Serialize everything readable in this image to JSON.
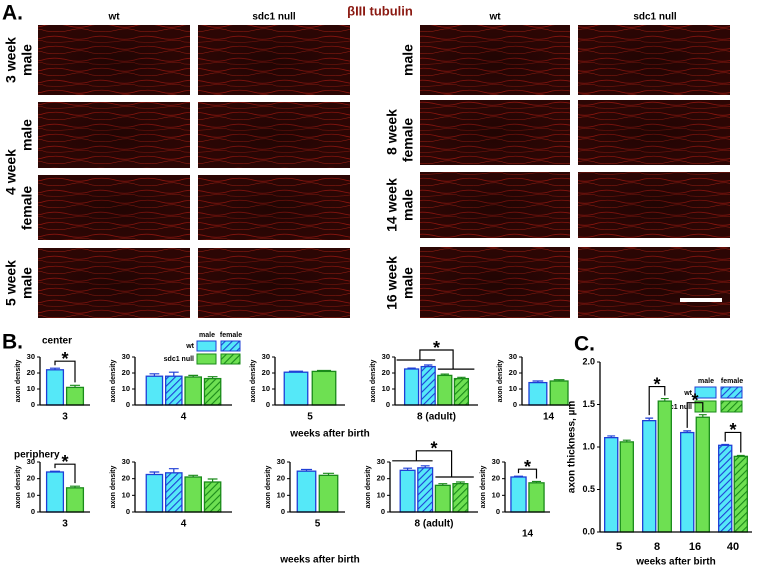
{
  "panel_a": {
    "label": "A.",
    "stain": "βIII tubulin",
    "left_columns": [
      "wt",
      "sdc1 null"
    ],
    "right_columns": [
      "wt",
      "sdc1 null"
    ],
    "left_rows": [
      [
        "3 week",
        "male"
      ],
      [
        "male"
      ],
      [
        "4 week"
      ],
      [
        "female"
      ],
      [
        "5 week",
        "male"
      ]
    ],
    "right_rows": [
      [
        "male"
      ],
      [
        "8 week"
      ],
      [
        "female"
      ],
      [
        "14 week",
        "male"
      ],
      [
        "16 week",
        "male"
      ]
    ]
  },
  "panel_b": {
    "label": "B.",
    "center": "center",
    "periphery": "periphery",
    "xlabels": [
      "weeks after birth",
      "weeks after birth"
    ],
    "legend": {
      "columns": [
        "male",
        "female"
      ],
      "rows": [
        "wt",
        "sdc1 null"
      ]
    }
  },
  "panel_c": {
    "label": "C.",
    "legend": {
      "columns": [
        "male",
        "female"
      ],
      "rows": [
        "wt",
        "sdc1 null"
      ]
    }
  },
  "chart_data": [
    {
      "type": "bar",
      "ylabel": "axon density",
      "categories": [
        "3"
      ],
      "values": [
        [
          22,
          11
        ]
      ],
      "errors": [
        [
          1,
          1.3
        ]
      ],
      "colors": [
        [
          "#55e8f8",
          "#6ee052"
        ]
      ],
      "edgecolors": [
        [
          "#1f3fd6",
          "#1a8a1a"
        ]
      ],
      "hatched": [
        [
          false,
          false
        ]
      ],
      "ylim": [
        0,
        30
      ],
      "yticks": [
        0,
        10,
        20,
        30
      ],
      "annotations": [
        "*"
      ]
    },
    {
      "type": "bar",
      "ylabel": "axon density",
      "categories": [
        "4"
      ],
      "values": [
        [
          18,
          18,
          17.5,
          16.5
        ]
      ],
      "errors": [
        [
          1.5,
          2.5,
          1,
          1.2
        ]
      ],
      "colors": [
        [
          "#55e8f8",
          "#55e8f8",
          "#6ee052",
          "#6ee052"
        ]
      ],
      "edgecolors": [
        [
          "#1f3fd6",
          "#1f3fd6",
          "#1a8a1a",
          "#1a8a1a"
        ]
      ],
      "hatched": [
        [
          false,
          true,
          false,
          true
        ]
      ],
      "ylim": [
        0,
        30
      ],
      "yticks": [
        0,
        10,
        20,
        30
      ]
    },
    {
      "type": "bar",
      "ylabel": "axon density",
      "categories": [
        "5"
      ],
      "values": [
        [
          20.5,
          21
        ]
      ],
      "errors": [
        [
          0.6,
          0.6
        ]
      ],
      "colors": [
        [
          "#55e8f8",
          "#6ee052"
        ]
      ],
      "edgecolors": [
        [
          "#1f3fd6",
          "#1a8a1a"
        ]
      ],
      "hatched": [
        [
          false,
          false
        ]
      ],
      "ylim": [
        0,
        30
      ],
      "yticks": [
        0,
        10,
        20,
        30
      ]
    },
    {
      "type": "bar",
      "ylabel": "axon density",
      "categories": [
        "8 (adult)"
      ],
      "values": [
        [
          22.5,
          24,
          18.5,
          16.5
        ]
      ],
      "errors": [
        [
          0.6,
          1,
          0.8,
          0.8
        ]
      ],
      "colors": [
        [
          "#55e8f8",
          "#55e8f8",
          "#6ee052",
          "#6ee052"
        ]
      ],
      "edgecolors": [
        [
          "#1f3fd6",
          "#1f3fd6",
          "#1a8a1a",
          "#1a8a1a"
        ]
      ],
      "hatched": [
        [
          false,
          true,
          false,
          true
        ]
      ],
      "ylim": [
        0,
        30
      ],
      "yticks": [
        0,
        10,
        20,
        30
      ],
      "annotations": [
        "*"
      ]
    },
    {
      "type": "bar",
      "ylabel": "axon density",
      "categories": [
        "14"
      ],
      "values": [
        [
          14,
          15
        ]
      ],
      "errors": [
        [
          1,
          0.8
        ]
      ],
      "colors": [
        [
          "#55e8f8",
          "#6ee052"
        ]
      ],
      "edgecolors": [
        [
          "#1f3fd6",
          "#1a8a1a"
        ]
      ],
      "hatched": [
        [
          false,
          false
        ]
      ],
      "ylim": [
        0,
        30
      ],
      "yticks": [
        0,
        10,
        20,
        30
      ]
    },
    {
      "type": "bar",
      "ylabel": "axon density",
      "categories": [
        "3"
      ],
      "values": [
        [
          24,
          14.5
        ]
      ],
      "errors": [
        [
          0.5,
          1
        ]
      ],
      "colors": [
        [
          "#55e8f8",
          "#6ee052"
        ]
      ],
      "edgecolors": [
        [
          "#1f3fd6",
          "#1a8a1a"
        ]
      ],
      "hatched": [
        [
          false,
          false
        ]
      ],
      "ylim": [
        0,
        30
      ],
      "yticks": [
        0,
        10,
        20,
        30
      ],
      "annotations": [
        "*"
      ]
    },
    {
      "type": "bar",
      "ylabel": "axon density",
      "categories": [
        "4"
      ],
      "values": [
        [
          22.5,
          23.5,
          21,
          18
        ]
      ],
      "errors": [
        [
          1.5,
          2.5,
          1,
          1.8
        ]
      ],
      "colors": [
        [
          "#55e8f8",
          "#55e8f8",
          "#6ee052",
          "#6ee052"
        ]
      ],
      "edgecolors": [
        [
          "#1f3fd6",
          "#1f3fd6",
          "#1a8a1a",
          "#1a8a1a"
        ]
      ],
      "hatched": [
        [
          false,
          true,
          false,
          true
        ]
      ],
      "ylim": [
        0,
        30
      ],
      "yticks": [
        0,
        10,
        20,
        30
      ]
    },
    {
      "type": "bar",
      "ylabel": "axon density",
      "categories": [
        "5"
      ],
      "values": [
        [
          24.5,
          22
        ]
      ],
      "errors": [
        [
          1,
          1.2
        ]
      ],
      "colors": [
        [
          "#55e8f8",
          "#6ee052"
        ]
      ],
      "edgecolors": [
        [
          "#1f3fd6",
          "#1a8a1a"
        ]
      ],
      "hatched": [
        [
          false,
          false
        ]
      ],
      "ylim": [
        0,
        30
      ],
      "yticks": [
        0,
        10,
        20,
        30
      ]
    },
    {
      "type": "bar",
      "ylabel": "axon density",
      "categories": [
        "8 (adult)"
      ],
      "values": [
        [
          25,
          26.5,
          16,
          17
        ]
      ],
      "errors": [
        [
          1.3,
          1.2,
          1,
          1
        ]
      ],
      "colors": [
        [
          "#55e8f8",
          "#55e8f8",
          "#6ee052",
          "#6ee052"
        ]
      ],
      "edgecolors": [
        [
          "#1f3fd6",
          "#1f3fd6",
          "#1a8a1a",
          "#1a8a1a"
        ]
      ],
      "hatched": [
        [
          false,
          true,
          false,
          true
        ]
      ],
      "ylim": [
        0,
        30
      ],
      "yticks": [
        0,
        10,
        20,
        30
      ],
      "annotations": [
        "*"
      ]
    },
    {
      "type": "bar",
      "ylabel": "axon density",
      "categories": [
        "14"
      ],
      "values": [
        [
          21,
          17.5
        ]
      ],
      "errors": [
        [
          0.5,
          0.8
        ]
      ],
      "colors": [
        [
          "#55e8f8",
          "#6ee052"
        ]
      ],
      "edgecolors": [
        [
          "#1f3fd6",
          "#1a8a1a"
        ]
      ],
      "hatched": [
        [
          false,
          false
        ]
      ],
      "ylim": [
        0,
        30
      ],
      "yticks": [
        0,
        10,
        20,
        30
      ],
      "annotations": [
        "*"
      ]
    },
    {
      "type": "bar",
      "ylabel": "axon thickness, µm",
      "xlabel": "weeks after birth",
      "categories": [
        "5",
        "8",
        "16",
        "40"
      ],
      "values": [
        [
          1.11,
          1.06
        ],
        [
          1.31,
          1.54
        ],
        [
          1.17,
          1.35
        ],
        [
          1.02,
          0.89
        ]
      ],
      "errors": [
        [
          0.02,
          0.02
        ],
        [
          0.03,
          0.03
        ],
        [
          0.02,
          0.03
        ],
        [
          0.01,
          0.01
        ]
      ],
      "colors": [
        [
          "#55e8f8",
          "#6ee052"
        ],
        [
          "#55e8f8",
          "#6ee052"
        ],
        [
          "#55e8f8",
          "#6ee052"
        ],
        [
          "#55e8f8",
          "#6ee052"
        ]
      ],
      "edgecolors": [
        [
          "#1f3fd6",
          "#1a8a1a"
        ],
        [
          "#1f3fd6",
          "#1a8a1a"
        ],
        [
          "#1f3fd6",
          "#1a8a1a"
        ],
        [
          "#1f3fd6",
          "#1a8a1a"
        ]
      ],
      "hatched": [
        [
          false,
          false
        ],
        [
          false,
          false
        ],
        [
          false,
          false
        ],
        [
          true,
          true
        ]
      ],
      "ylim": [
        0,
        2
      ],
      "yticks": [
        {
          "value": 0,
          "label": "0.0"
        },
        {
          "value": 0.5,
          "label": "0.5"
        },
        {
          "value": 1,
          "label": "1.0"
        },
        {
          "value": 1.5,
          "label": "1.5"
        },
        {
          "value": 2,
          "label": "2.0"
        }
      ],
      "annotations": [
        "*",
        "*",
        "*"
      ]
    }
  ]
}
